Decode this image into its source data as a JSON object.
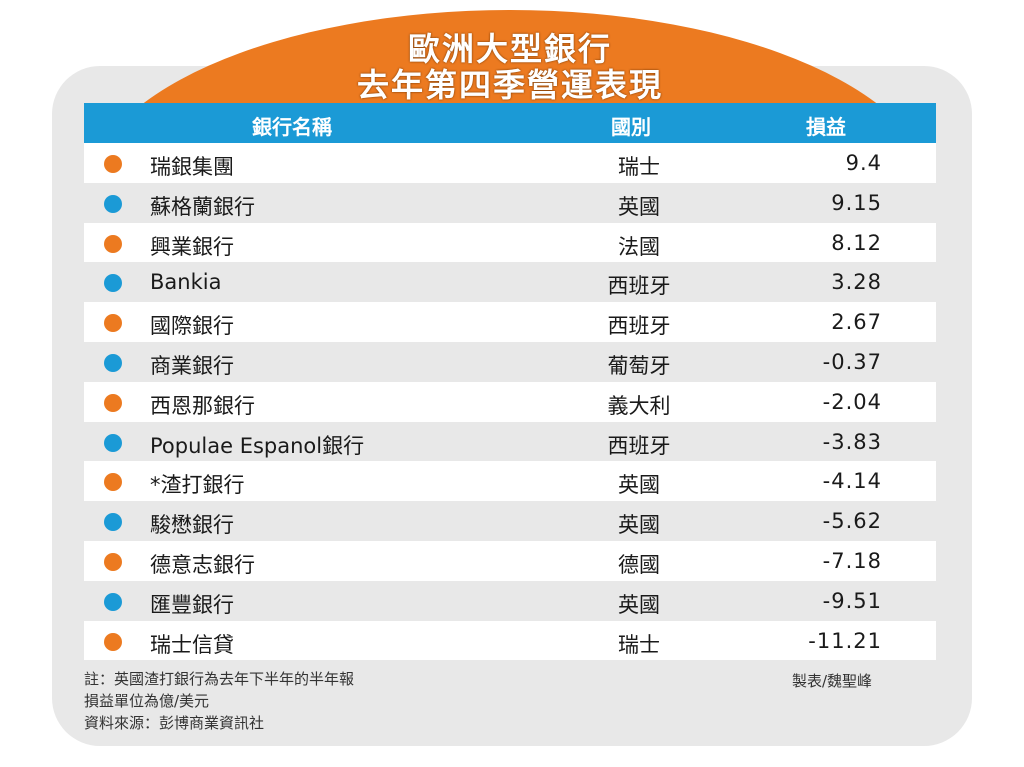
{
  "title_line1": "歐洲大型銀行",
  "title_line2": "去年第四季營運表現",
  "headers": {
    "name": "銀行名稱",
    "country": "國別",
    "value": "損益"
  },
  "colors": {
    "orange": "#ec7a20",
    "blue": "#1b9ad6"
  },
  "chart_data": {
    "type": "table",
    "columns": [
      "銀行名稱",
      "國別",
      "損益"
    ],
    "rows": [
      {
        "name": "瑞銀集團",
        "country": "瑞士",
        "value": "9.4",
        "dot": "orange"
      },
      {
        "name": "蘇格蘭銀行",
        "country": "英國",
        "value": "9.15",
        "dot": "blue"
      },
      {
        "name": "興業銀行",
        "country": "法國",
        "value": "8.12",
        "dot": "orange"
      },
      {
        "name": "Bankia",
        "country": "西班牙",
        "value": "3.28",
        "dot": "blue"
      },
      {
        "name": "國際銀行",
        "country": "西班牙",
        "value": "2.67",
        "dot": "orange"
      },
      {
        "name": "商業銀行",
        "country": "葡萄牙",
        "value": "-0.37",
        "dot": "blue"
      },
      {
        "name": "西恩那銀行",
        "country": "義大利",
        "value": "-2.04",
        "dot": "orange"
      },
      {
        "name": "Populae Espanol銀行",
        "country": "西班牙",
        "value": "-3.83",
        "dot": "blue"
      },
      {
        "name": "*渣打銀行",
        "country": "英國",
        "value": "-4.14",
        "dot": "orange"
      },
      {
        "name": "駿懋銀行",
        "country": "英國",
        "value": "-5.62",
        "dot": "blue"
      },
      {
        "name": "德意志銀行",
        "country": "德國",
        "value": "-7.18",
        "dot": "orange"
      },
      {
        "name": "匯豐銀行",
        "country": "英國",
        "value": "-9.51",
        "dot": "blue"
      },
      {
        "name": "瑞士信貸",
        "country": "瑞士",
        "value": "-11.21",
        "dot": "orange"
      }
    ]
  },
  "notes": [
    "註：英國渣打銀行為去年下半年的半年報",
    "損益單位為億/美元",
    "資料來源：彭博商業資訊社"
  ],
  "credit": "製表/魏聖峰"
}
